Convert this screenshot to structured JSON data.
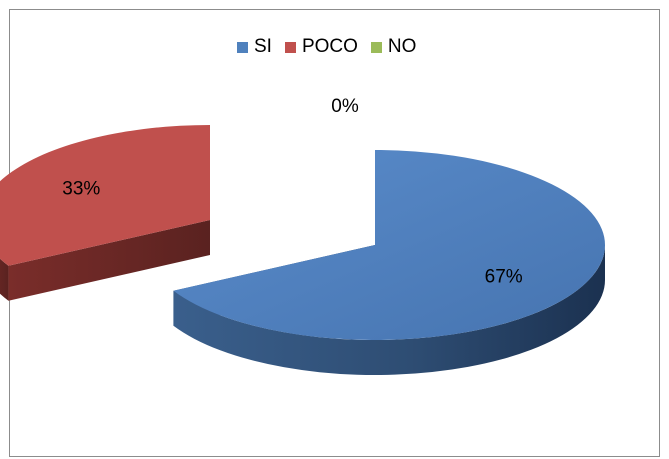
{
  "chart_data": {
    "type": "pie",
    "title": "",
    "categories": [
      "SI",
      "POCO",
      "NO"
    ],
    "values": [
      67,
      33,
      0
    ],
    "labels": [
      "67%",
      "33%",
      "0%"
    ],
    "colors": [
      "#4f81bd",
      "#c0504d",
      "#9bbb59"
    ],
    "legend_position": "top",
    "three_d": true,
    "exploded": true
  }
}
